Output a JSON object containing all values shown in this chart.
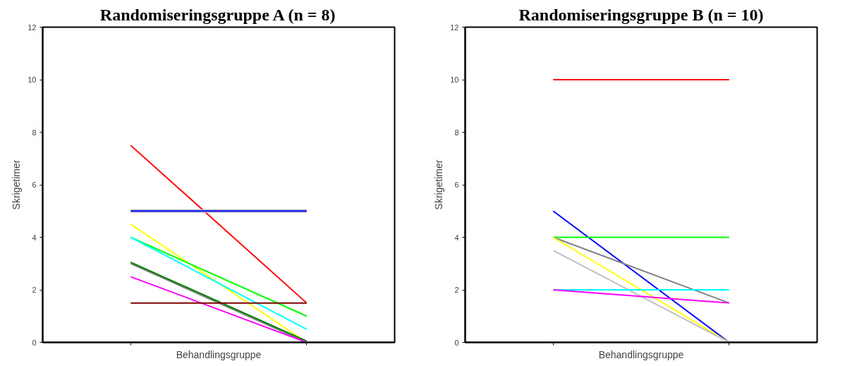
{
  "chart_data": [
    {
      "type": "line",
      "title": "Randomiseringsgruppe A (n = 8)",
      "xlabel": "Behandlingsgruppe",
      "ylabel": "Skrigetimer",
      "categories": [
        null,
        null
      ],
      "ylim": [
        0,
        12
      ],
      "yticks": [
        0,
        2,
        4,
        6,
        8,
        10,
        12
      ],
      "grid": false,
      "tick_labels": "y",
      "series": [
        {
          "color": "#ff0000",
          "values": [
            7.5,
            1.5
          ]
        },
        {
          "color": "#c0c0c0",
          "values": [
            5,
            5
          ]
        },
        {
          "color": "#0000ff",
          "values": [
            5,
            5
          ]
        },
        {
          "color": "#ffff00",
          "values": [
            4.5,
            0
          ]
        },
        {
          "color": "#00ff00",
          "values": [
            4,
            1
          ]
        },
        {
          "color": "#00ffff",
          "values": [
            4,
            0.5
          ]
        },
        {
          "color": "#808080",
          "values": [
            3,
            0
          ]
        },
        {
          "color": "#008000",
          "values": [
            3.05,
            0.05
          ]
        },
        {
          "color": "#ff00ff",
          "values": [
            2.5,
            0
          ]
        },
        {
          "color": "#800000",
          "values": [
            1.5,
            1.5
          ]
        }
      ]
    },
    {
      "type": "line",
      "title": "Randomiseringsgruppe B (n = 10)",
      "xlabel": "Behandlingsgruppe",
      "ylabel": "Skrigetimer",
      "categories": [
        null,
        null
      ],
      "ylim": [
        0,
        12
      ],
      "yticks": [
        0,
        2,
        4,
        6,
        8,
        10,
        12
      ],
      "grid": false,
      "tick_labels": "y",
      "series": [
        {
          "color": "#ff0000",
          "values": [
            10,
            10
          ]
        },
        {
          "color": "#0000ff",
          "values": [
            5,
            0
          ]
        },
        {
          "color": "#00ff00",
          "values": [
            4,
            4
          ]
        },
        {
          "color": "#808080",
          "values": [
            4,
            1.5
          ]
        },
        {
          "color": "#ffff00",
          "values": [
            4,
            0
          ]
        },
        {
          "color": "#c0c0c0",
          "values": [
            3.5,
            0
          ]
        },
        {
          "color": "#00ffff",
          "values": [
            2,
            2
          ]
        },
        {
          "color": "#ff00ff",
          "values": [
            2,
            1.5
          ]
        }
      ]
    }
  ]
}
